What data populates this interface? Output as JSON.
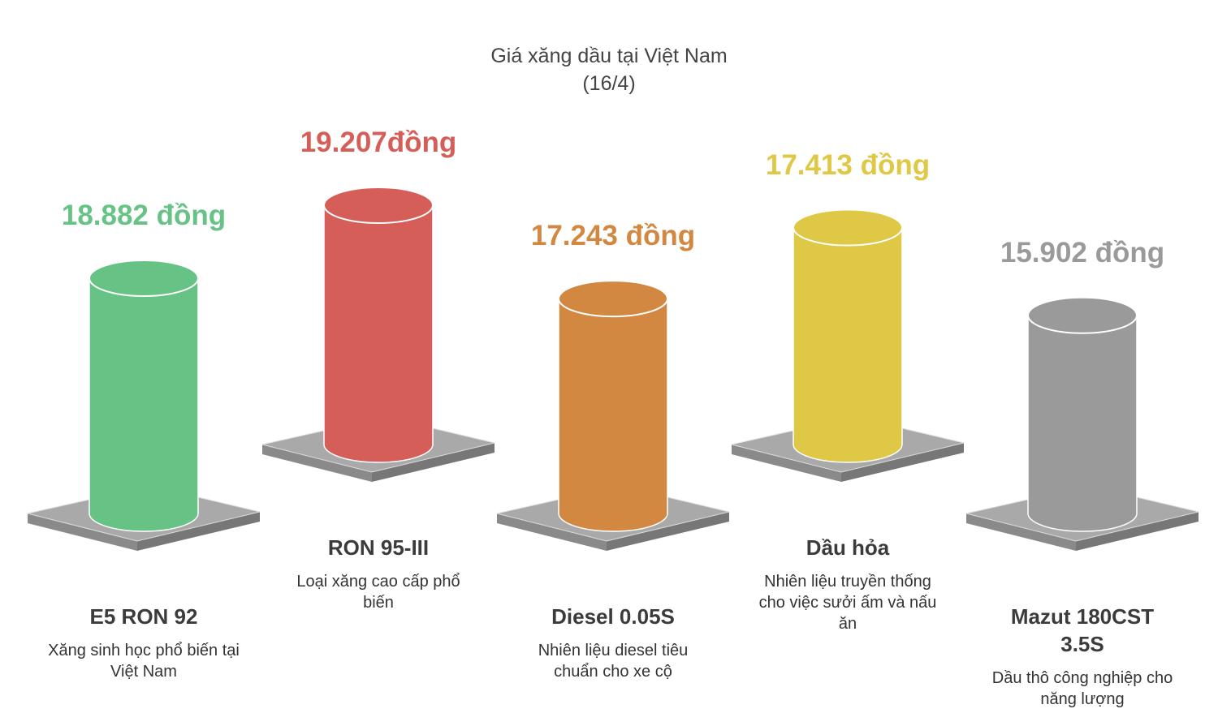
{
  "chart_data": {
    "type": "bar",
    "title": "Giá xăng dầu tại Việt Nam",
    "subtitle": "(16/4)",
    "categories": [
      "E5 RON 92",
      "RON 95-III",
      "Diesel 0.05S",
      "Dầu hỏa",
      "Mazut 180CST 3.5S"
    ],
    "descriptions": [
      "Xăng sinh học phổ biến tại Việt Nam",
      "Loại xăng cao cấp phổ biến",
      "Nhiên liệu diesel tiêu chuẩn cho xe cộ",
      "Nhiên liệu truyền thống cho việc sưởi ấm và nấu ăn",
      "Dầu thô công nghiệp cho năng lượng"
    ],
    "values": [
      18882,
      19207,
      17243,
      17413,
      15902
    ],
    "value_labels": [
      "18.882 đồng",
      "19.207đồng",
      "17.243 đồng",
      "17.413 đồng",
      "15.902 đồng"
    ],
    "colors": [
      "#66c285",
      "#d55f58",
      "#d38841",
      "#dec845",
      "#9a9a9a"
    ]
  }
}
